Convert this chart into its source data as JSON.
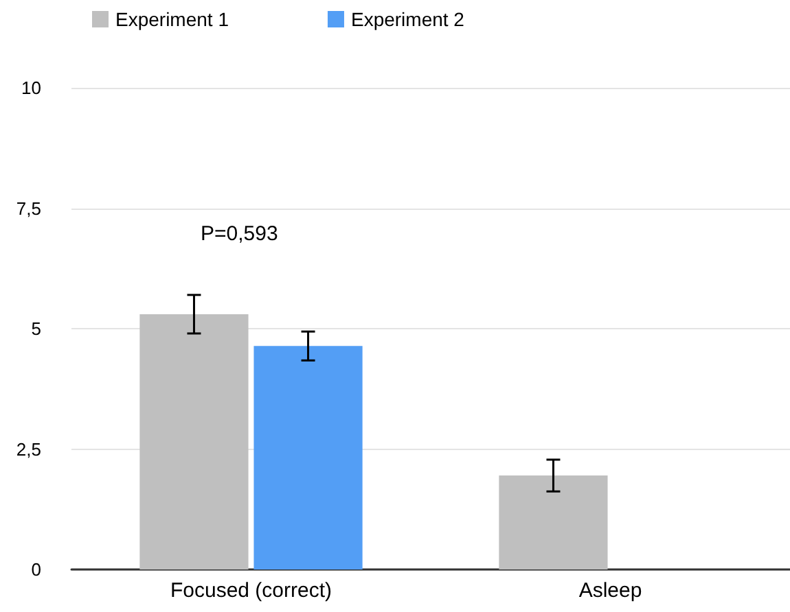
{
  "chart_data": {
    "type": "bar",
    "categories": [
      "Focused (correct)",
      "Asleep"
    ],
    "series": [
      {
        "name": "Experiment 1",
        "color": "#bfbfbf",
        "values": [
          5.3,
          1.95
        ],
        "errors": [
          0.4,
          0.33
        ]
      },
      {
        "name": "Experiment 2",
        "color": "#539ef5",
        "values": [
          4.64,
          null
        ],
        "errors": [
          0.3,
          null
        ]
      }
    ],
    "ylim": [
      0,
      10
    ],
    "yticks": [
      0,
      {
        "value": 2.5,
        "label": "2,5"
      },
      5,
      {
        "value": 7.5,
        "label": "7,5"
      },
      10
    ],
    "annotations": [
      "P=0,593"
    ],
    "grid": "y",
    "legend": "top left"
  }
}
